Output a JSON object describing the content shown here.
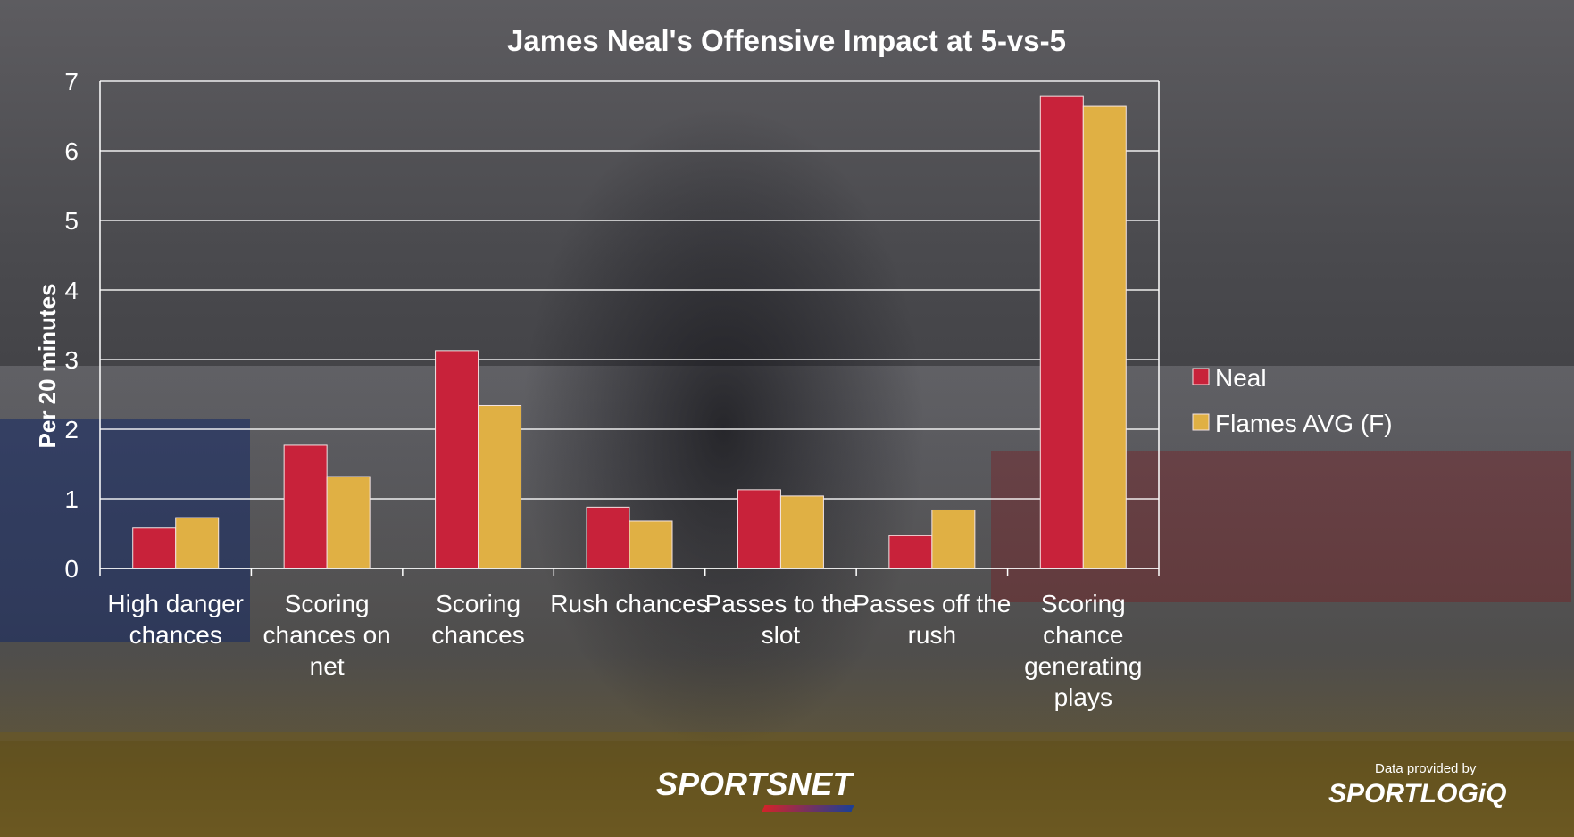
{
  "chart_data": {
    "type": "bar",
    "title": "James Neal's Offensive Impact at 5-vs-5",
    "ylabel": "Per 20 minutes",
    "xlabel": "",
    "ylim": [
      0,
      7
    ],
    "yticks": [
      0,
      1,
      2,
      3,
      4,
      5,
      6,
      7
    ],
    "grid": true,
    "legend_position": "right",
    "categories": [
      [
        "High danger",
        "chances"
      ],
      [
        "Scoring",
        "chances on",
        "net"
      ],
      [
        "Scoring",
        "chances"
      ],
      [
        "Rush chances"
      ],
      [
        "Passes to the",
        "slot"
      ],
      [
        "Passes off the",
        "rush"
      ],
      [
        "Scoring",
        "chance",
        "generating",
        "plays"
      ]
    ],
    "series": [
      {
        "name": "Neal",
        "color": "#c8223a",
        "values": [
          0.58,
          1.77,
          3.13,
          0.88,
          1.13,
          0.47,
          6.78
        ]
      },
      {
        "name": "Flames AVG (F)",
        "color": "#e0b044",
        "values": [
          0.73,
          1.32,
          2.34,
          0.68,
          1.04,
          0.84,
          6.64
        ]
      }
    ]
  },
  "branding": {
    "network": "SPORTSNET",
    "provider_caption": "Data provided by",
    "provider": "SPORTLOGiQ"
  }
}
